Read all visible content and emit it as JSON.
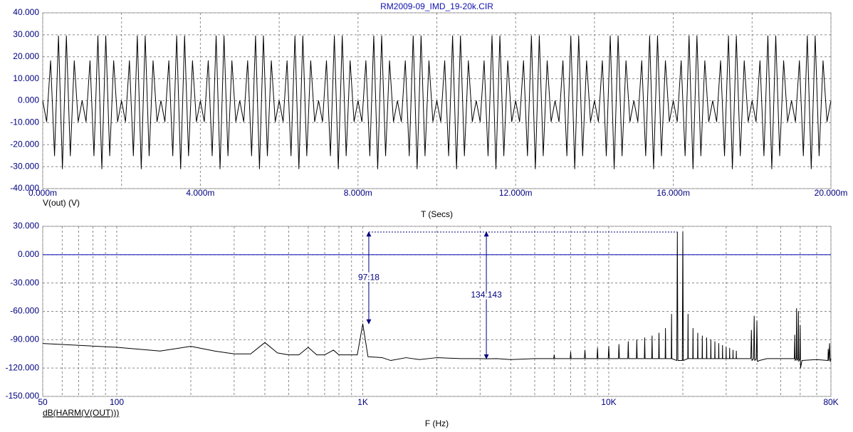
{
  "chart_data": [
    {
      "type": "line",
      "title": "RM2009-09_IMD_19-20k.CIR",
      "ylabel": "V(out) (V)",
      "xlabel": "T (Secs)",
      "color": "#000000",
      "xlim": [
        0,
        0.02
      ],
      "ylim": [
        -40,
        40
      ],
      "grid": true,
      "xticks": [
        {
          "value": 0,
          "label": "0.000m"
        },
        {
          "value": 0.004,
          "label": "4.000m"
        },
        {
          "value": 0.008,
          "label": "8.000m"
        },
        {
          "value": 0.012,
          "label": "12.000m"
        },
        {
          "value": 0.016,
          "label": "16.000m"
        },
        {
          "value": 0.02,
          "label": "20.000m"
        }
      ],
      "xminorticks": [
        0.002,
        0.006,
        0.01,
        0.014,
        0.018
      ],
      "yticks": [
        {
          "value": 40,
          "label": "40.000"
        },
        {
          "value": 30,
          "label": "30.000"
        },
        {
          "value": 20,
          "label": "20.000"
        },
        {
          "value": 10,
          "label": "10.000"
        },
        {
          "value": 0,
          "label": "0.000"
        },
        {
          "value": -10,
          "label": "-10.000"
        },
        {
          "value": -20,
          "label": "-20.000"
        },
        {
          "value": -30,
          "label": "-30.000"
        },
        {
          "value": -40,
          "label": "-40.000"
        }
      ],
      "x": [
        0,
        0.0001,
        0.0002,
        0.0003,
        0.0004,
        0.0005,
        0.0006,
        0.0007,
        0.0008,
        0.0009,
        0.001,
        0.0011,
        0.0012,
        0.0013,
        0.0014,
        0.0015,
        0.0016,
        0.0017,
        0.0018,
        0.0019,
        0.002,
        0.0021,
        0.0022,
        0.0023,
        0.0024,
        0.0025,
        0.0026,
        0.0027,
        0.0028,
        0.0029,
        0.003,
        0.0031,
        0.0032,
        0.0033,
        0.0034,
        0.0035,
        0.0036,
        0.0037,
        0.0038,
        0.0039,
        0.004,
        0.0041,
        0.0042,
        0.0043,
        0.0044,
        0.0045,
        0.0046,
        0.0047,
        0.0048,
        0.0049,
        0.005,
        0.0051,
        0.0052,
        0.0053,
        0.0054,
        0.0055,
        0.0056,
        0.0057,
        0.0058,
        0.0059,
        0.006,
        0.0061,
        0.0062,
        0.0063,
        0.0064,
        0.0065,
        0.0066,
        0.0067,
        0.0068,
        0.0069,
        0.007,
        0.0071,
        0.0072,
        0.0073,
        0.0074,
        0.0075,
        0.0076,
        0.0077,
        0.0078,
        0.0079,
        0.008,
        0.0081,
        0.0082,
        0.0083,
        0.0084,
        0.0085,
        0.0086,
        0.0087,
        0.0088,
        0.0089,
        0.009,
        0.0091,
        0.0092,
        0.0093,
        0.0094,
        0.0095,
        0.0096,
        0.0097,
        0.0098,
        0.0099,
        0.01,
        0.0101,
        0.0102,
        0.0103,
        0.0104,
        0.0105,
        0.0106,
        0.0107,
        0.0108,
        0.0109,
        0.011,
        0.0111,
        0.0112,
        0.0113,
        0.0114,
        0.0115,
        0.0116,
        0.0117,
        0.0118,
        0.0119,
        0.012,
        0.0121,
        0.0122,
        0.0123,
        0.0124,
        0.0125,
        0.0126,
        0.0127,
        0.0128,
        0.0129,
        0.013,
        0.0131,
        0.0132,
        0.0133,
        0.0134,
        0.0135,
        0.0136,
        0.0137,
        0.0138,
        0.0139,
        0.014,
        0.0141,
        0.0142,
        0.0143,
        0.0144,
        0.0145,
        0.0146,
        0.0147,
        0.0148,
        0.0149,
        0.015,
        0.0151,
        0.0152,
        0.0153,
        0.0154,
        0.0155,
        0.0156,
        0.0157,
        0.0158,
        0.0159,
        0.016,
        0.0161,
        0.0162,
        0.0163,
        0.0164,
        0.0165,
        0.0166,
        0.0167,
        0.0168,
        0.0169,
        0.017,
        0.0171,
        0.0172,
        0.0173,
        0.0174,
        0.0175,
        0.0176,
        0.0177,
        0.0178,
        0.0179,
        0.018,
        0.0181,
        0.0182,
        0.0183,
        0.0184,
        0.0185,
        0.0186,
        0.0187,
        0.0188,
        0.0189,
        0.019,
        0.0191,
        0.0192,
        0.0193,
        0.0194,
        0.0195,
        0.0196,
        0.0197,
        0.0198,
        0.0199,
        0.02
      ],
      "values": [
        0,
        -9.6,
        18.2,
        -25.1,
        29.5,
        -31,
        29.5,
        -25.1,
        18.2,
        -9.6,
        0,
        -9.6,
        18.2,
        -25.1,
        29.5,
        -31,
        29.5,
        -25.1,
        18.2,
        -9.6,
        0,
        -9.6,
        18.2,
        -25.1,
        29.5,
        -31,
        29.5,
        -25.1,
        18.2,
        -9.6,
        0,
        -9.6,
        18.2,
        -25.1,
        29.5,
        -31,
        29.5,
        -25.1,
        18.2,
        -9.6,
        0,
        -9.6,
        18.2,
        -25.1,
        29.5,
        -31,
        29.5,
        -25.1,
        18.2,
        -9.6,
        0,
        -9.6,
        18.2,
        -25.1,
        29.5,
        -31,
        29.5,
        -25.1,
        18.2,
        -9.6,
        0,
        -9.6,
        18.2,
        -25.1,
        29.5,
        -31,
        29.5,
        -25.1,
        18.2,
        -9.6,
        0,
        -9.6,
        18.2,
        -25.1,
        29.5,
        -31,
        29.5,
        -25.1,
        18.2,
        -9.6,
        0,
        -9.6,
        18.2,
        -25.1,
        29.5,
        -31,
        29.5,
        -25.1,
        18.2,
        -9.6,
        0,
        -9.6,
        18.2,
        -25.1,
        29.5,
        -31,
        29.5,
        -25.1,
        18.2,
        -9.6,
        0,
        -9.6,
        18.2,
        -25.1,
        29.5,
        -31,
        29.5,
        -25.1,
        18.2,
        -9.6,
        0,
        -9.6,
        18.2,
        -25.1,
        29.5,
        -31,
        29.5,
        -25.1,
        18.2,
        -9.6,
        0,
        -9.6,
        18.2,
        -25.1,
        29.5,
        -31,
        29.5,
        -25.1,
        18.2,
        -9.6,
        0,
        -9.6,
        18.2,
        -25.1,
        29.5,
        -31,
        29.5,
        -25.1,
        18.2,
        -9.6,
        0,
        -9.6,
        18.2,
        -25.1,
        29.5,
        -31,
        29.5,
        -25.1,
        18.2,
        -9.6,
        0,
        -9.6,
        18.2,
        -25.1,
        29.5,
        -31,
        29.5,
        -25.1,
        18.2,
        -9.6,
        0,
        -9.6,
        18.2,
        -25.1,
        29.5,
        -31,
        29.5,
        -25.1,
        18.2,
        -9.6,
        0,
        -9.6,
        18.2,
        -25.1,
        29.5,
        -31,
        29.5,
        -25.1,
        18.2,
        -9.6,
        0,
        -9.6,
        18.2,
        -25.1,
        29.5,
        -31,
        29.5,
        -25.1,
        18.2,
        -9.6,
        0,
        -9.6,
        18.2,
        -25.1,
        29.5,
        -31,
        29.5,
        -25.1,
        18.2,
        -9.6,
        0
      ]
    },
    {
      "type": "line",
      "ylabel": "dB(HARM(V(OUT)))",
      "xlabel": "F (Hz)",
      "color": "#000000",
      "xscale": "log",
      "xlim": [
        50,
        80000
      ],
      "ylim": [
        -150,
        30
      ],
      "grid": true,
      "xticks": [
        50,
        100,
        {
          "value": 1000,
          "label": "1K"
        },
        {
          "value": 10000,
          "label": "10K"
        },
        {
          "value": 80000,
          "label": "80K"
        }
      ],
      "xminorticks": [
        60,
        70,
        80,
        90,
        200,
        300,
        400,
        500,
        600,
        700,
        800,
        900,
        2000,
        3000,
        4000,
        5000,
        6000,
        7000,
        8000,
        9000,
        20000,
        30000,
        40000,
        50000,
        60000,
        70000
      ],
      "yticks": [
        {
          "value": 30,
          "label": "30.000"
        },
        {
          "value": 0,
          "label": "0.000"
        },
        {
          "value": -30,
          "label": "-30.000"
        },
        {
          "value": -60,
          "label": "-60.000"
        },
        {
          "value": -90,
          "label": "-90.000"
        },
        {
          "value": -120,
          "label": "-120.000"
        },
        {
          "value": -150,
          "label": "-150.000"
        }
      ],
      "hline": {
        "y": 0,
        "color": "#0000b0"
      },
      "ref_line": {
        "x": [
          1058,
          19000
        ],
        "y": 24
      },
      "annotations": [
        {
          "label": "97.18",
          "x": 1058,
          "y_from": 24,
          "y_to": -73.18
        },
        {
          "label": "134.143",
          "x": 3180,
          "y_from": 24,
          "y_to": -110.143
        }
      ],
      "x": [
        50,
        100,
        150,
        200,
        250,
        300,
        350,
        400,
        450,
        500,
        550,
        600,
        650,
        700,
        760,
        800,
        950,
        1000,
        1050,
        1200,
        1300,
        1500,
        1700,
        2000,
        2500,
        3000,
        3180,
        3500,
        4000,
        5000,
        5970,
        6000,
        6030,
        6970,
        7000,
        7030,
        7960,
        8000,
        8040,
        8960,
        9000,
        9040,
        9950,
        10000,
        10050,
        10950,
        11000,
        11050,
        11950,
        12000,
        12050,
        12950,
        13000,
        13050,
        13950,
        14000,
        14050,
        14950,
        15000,
        15050,
        15950,
        16000,
        16050,
        16950,
        17000,
        17050,
        17950,
        18000,
        18050,
        18900,
        19000,
        19100,
        19900,
        20000,
        20100,
        20950,
        21000,
        21050,
        21950,
        22000,
        22050,
        22950,
        23000,
        23050,
        23950,
        24000,
        24050,
        24950,
        25000,
        25050,
        25950,
        26000,
        26050,
        26950,
        27000,
        27050,
        27950,
        28000,
        28050,
        28950,
        29000,
        29050,
        29950,
        30000,
        30050,
        30950,
        31000,
        31050,
        31950,
        32000,
        32050,
        32950,
        33000,
        33050,
        34000,
        37800,
        38000,
        38200,
        38800,
        39000,
        39200,
        39800,
        40000,
        40200,
        41000,
        44000,
        56800,
        57000,
        57200,
        57800,
        58000,
        58200,
        58800,
        59000,
        59200,
        59800,
        60000,
        60200,
        61000,
        70000,
        77800,
        78000,
        78500,
        79000,
        79500,
        80000
      ],
      "values": [
        -94,
        -98,
        -102,
        -97,
        -102,
        -105,
        -105,
        -93,
        -104,
        -106,
        -106,
        -98,
        -106,
        -106,
        -101,
        -106,
        -106,
        -73.18,
        -108,
        -109,
        -112,
        -109,
        -111,
        -109,
        -110,
        -110,
        -110.143,
        -110,
        -111,
        -110,
        -110,
        -106,
        -110,
        -110,
        -103,
        -110,
        -110,
        -101,
        -110,
        -110,
        -99,
        -110,
        -110,
        -97,
        -110,
        -110,
        -95,
        -110,
        -110,
        -92,
        -110,
        -110,
        -90,
        -110,
        -110,
        -88,
        -110,
        -110,
        -86,
        -110,
        -110,
        -83,
        -110,
        -110,
        -78,
        -110,
        -110,
        -63,
        -110,
        -112,
        24,
        -112,
        -112,
        24,
        -112,
        -110,
        -63,
        -110,
        -110,
        -78,
        -110,
        -110,
        -83,
        -110,
        -110,
        -86,
        -110,
        -110,
        -88,
        -110,
        -110,
        -90,
        -110,
        -110,
        -92,
        -110,
        -110,
        -94,
        -110,
        -110,
        -96,
        -110,
        -110,
        -98,
        -110,
        -110,
        -99,
        -110,
        -110,
        -101,
        -110,
        -110,
        -102,
        -110,
        -110,
        -110,
        -80,
        -112,
        -110,
        -65,
        -112,
        -110,
        -70,
        -113,
        -112,
        -110,
        -110,
        -85,
        -112,
        -110,
        -57,
        -112,
        -110,
        -60,
        -113,
        -110,
        -75,
        -120,
        -112,
        -111,
        -112,
        -100,
        -112,
        -94,
        -113,
        -110
      ]
    }
  ]
}
